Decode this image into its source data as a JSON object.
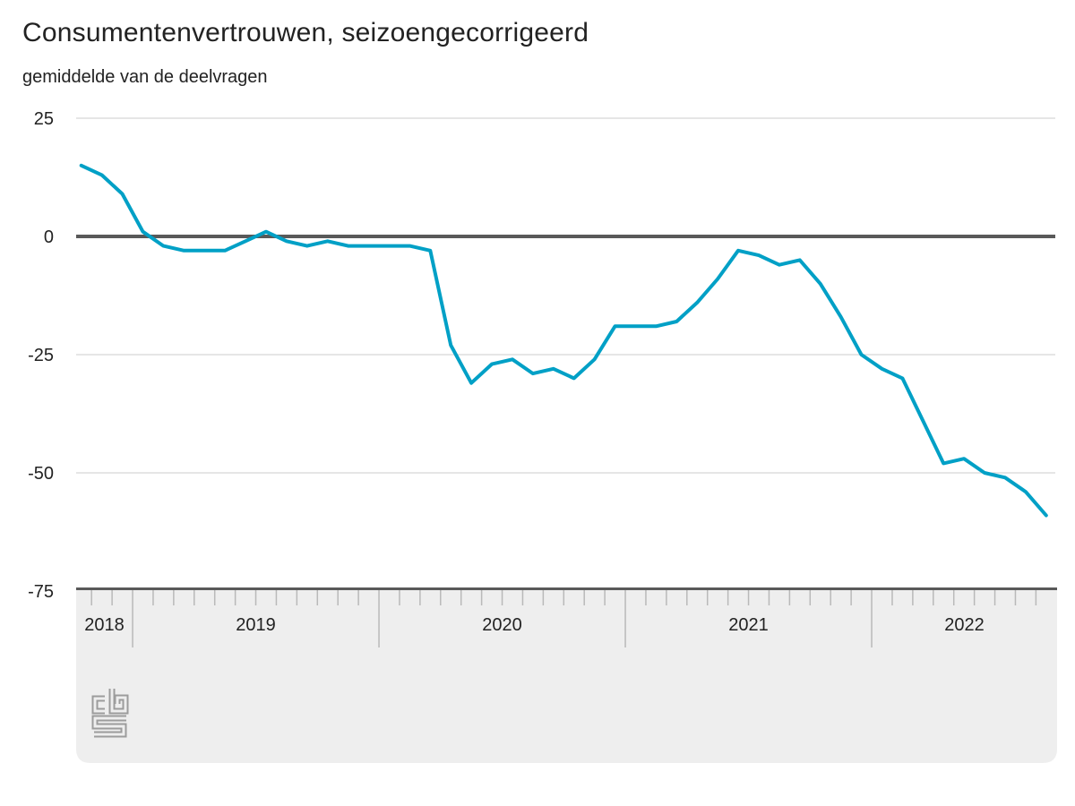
{
  "title": "Consumentenvertrouwen, seizoengecorrigeerd",
  "subtitle": "gemiddelde van de deelvragen",
  "logo_name": "cbs-logo",
  "colors": {
    "line": "#00a0c6",
    "zero_line": "#595959",
    "gridline": "#cccccc",
    "axis_band_bg": "#eeeeee",
    "tick": "#b9b9b9",
    "logo": "#9c9c9c",
    "text": "#222222"
  },
  "chart_data": {
    "type": "line",
    "title": "Consumentenvertrouwen, seizoengecorrigeerd",
    "subtitle": "gemiddelde van de deelvragen",
    "xlabel": "",
    "ylabel": "",
    "ylim": [
      -75,
      25
    ],
    "yticks": [
      25,
      0,
      -25,
      -50,
      -75
    ],
    "grid": true,
    "legend": "none",
    "frequency": "monthly",
    "x_tick_labels": [
      "2018",
      "2019",
      "2020",
      "2021",
      "2022"
    ],
    "categories": [
      "2018-10",
      "2018-11",
      "2018-12",
      "2019-01",
      "2019-02",
      "2019-03",
      "2019-04",
      "2019-05",
      "2019-06",
      "2019-07",
      "2019-08",
      "2019-09",
      "2019-10",
      "2019-11",
      "2019-12",
      "2020-01",
      "2020-02",
      "2020-03",
      "2020-04",
      "2020-05",
      "2020-06",
      "2020-07",
      "2020-08",
      "2020-09",
      "2020-10",
      "2020-11",
      "2020-12",
      "2021-01",
      "2021-02",
      "2021-03",
      "2021-04",
      "2021-05",
      "2021-06",
      "2021-07",
      "2021-08",
      "2021-09",
      "2021-10",
      "2021-11",
      "2021-12",
      "2022-01",
      "2022-02",
      "2022-03",
      "2022-04",
      "2022-05",
      "2022-06",
      "2022-07",
      "2022-08",
      "2022-09"
    ],
    "series": [
      {
        "name": "Consumentenvertrouwen, seizoengecorrigeerd",
        "values": [
          15,
          13,
          9,
          1,
          -2,
          -3,
          -3,
          -3,
          -1,
          1,
          -1,
          -2,
          -1,
          -2,
          -2,
          -2,
          -2,
          -3,
          -23,
          -31,
          -27,
          -26,
          -29,
          -28,
          -30,
          -26,
          -19,
          -19,
          -19,
          -18,
          -14,
          -9,
          -3,
          -4,
          -6,
          -5,
          -10,
          -17,
          -25,
          -28,
          -30,
          -39,
          -48,
          -47,
          -50,
          -51,
          -54,
          -59
        ]
      }
    ]
  }
}
